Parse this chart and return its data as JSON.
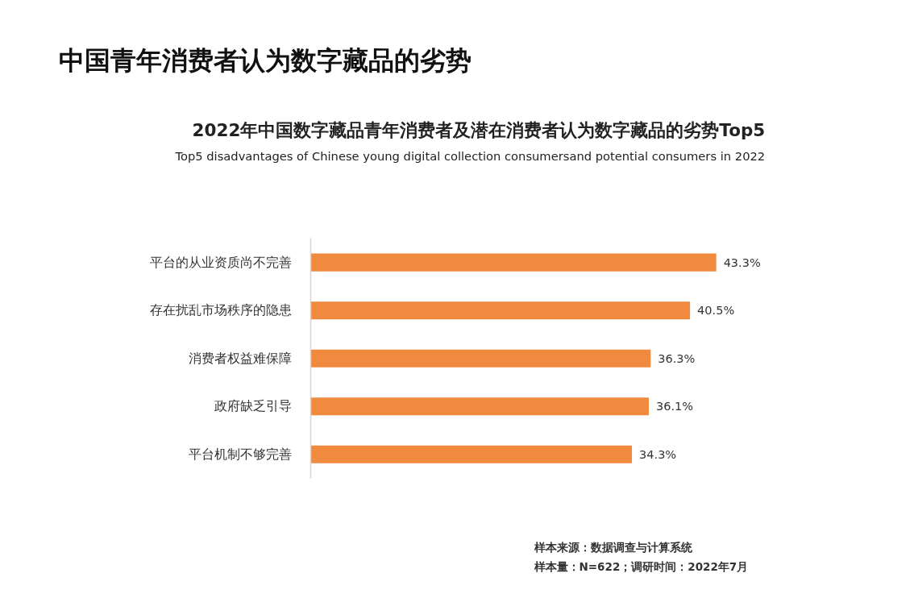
{
  "chart_data": {
    "type": "bar",
    "orientation": "horizontal",
    "title": "中国青年消费者认为数字藏品的劣势",
    "subtitle": "2022年中国数字藏品青年消费者及潜在消费者认为数字藏品的劣势Top5",
    "annotations": [
      "Top5 disadvantages of Chinese young digital collection consumersand potential consumers in 2022",
      "样本来源：数据调查与计算系统",
      "样本量：N=622；调研时间：2022年7月"
    ],
    "categories": [
      "平台的从业资质尚不完善",
      "存在扰乱市场秩序的隐患",
      "消费者权益难保障",
      "政府缺乏引导",
      "平台机制不够完善"
    ],
    "values": [
      43.3,
      40.5,
      36.3,
      36.1,
      34.3
    ],
    "color": "#ef8a3f",
    "value_labels": [
      "43.3%",
      "40.5%",
      "36.3%",
      "36.1%",
      "34.3%"
    ],
    "grid": false
  }
}
